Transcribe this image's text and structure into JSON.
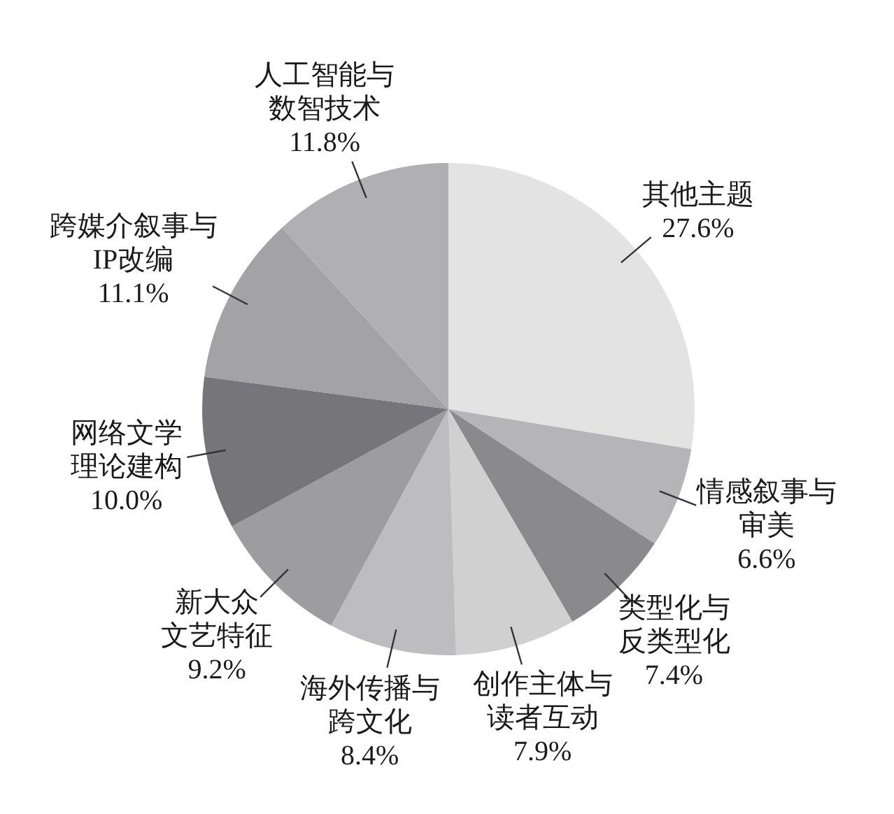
{
  "chart_data": {
    "type": "pie",
    "categories": [
      "其他主题",
      "情感叙事与审美",
      "类型化与反类型化",
      "创作主体与读者互动",
      "海外传播与跨文化",
      "新大众文艺特征",
      "网络文学理论建构",
      "跨媒介叙事与IP改编",
      "人工智能与数智技术"
    ],
    "values": [
      27.6,
      6.6,
      7.4,
      7.9,
      8.4,
      9.2,
      10.0,
      11.1,
      11.8
    ],
    "value_labels": [
      "27.6%",
      "6.6%",
      "7.4%",
      "7.9%",
      "8.4%",
      "9.2%",
      "10.0%",
      "11.1%",
      "11.8%"
    ],
    "colors": [
      "#e3e3e3",
      "#b5b5b7",
      "#8a8a8d",
      "#d0d0d1",
      "#bdbdbf",
      "#9d9da0",
      "#76767a",
      "#a3a3a6",
      "#b0b0b2"
    ]
  }
}
